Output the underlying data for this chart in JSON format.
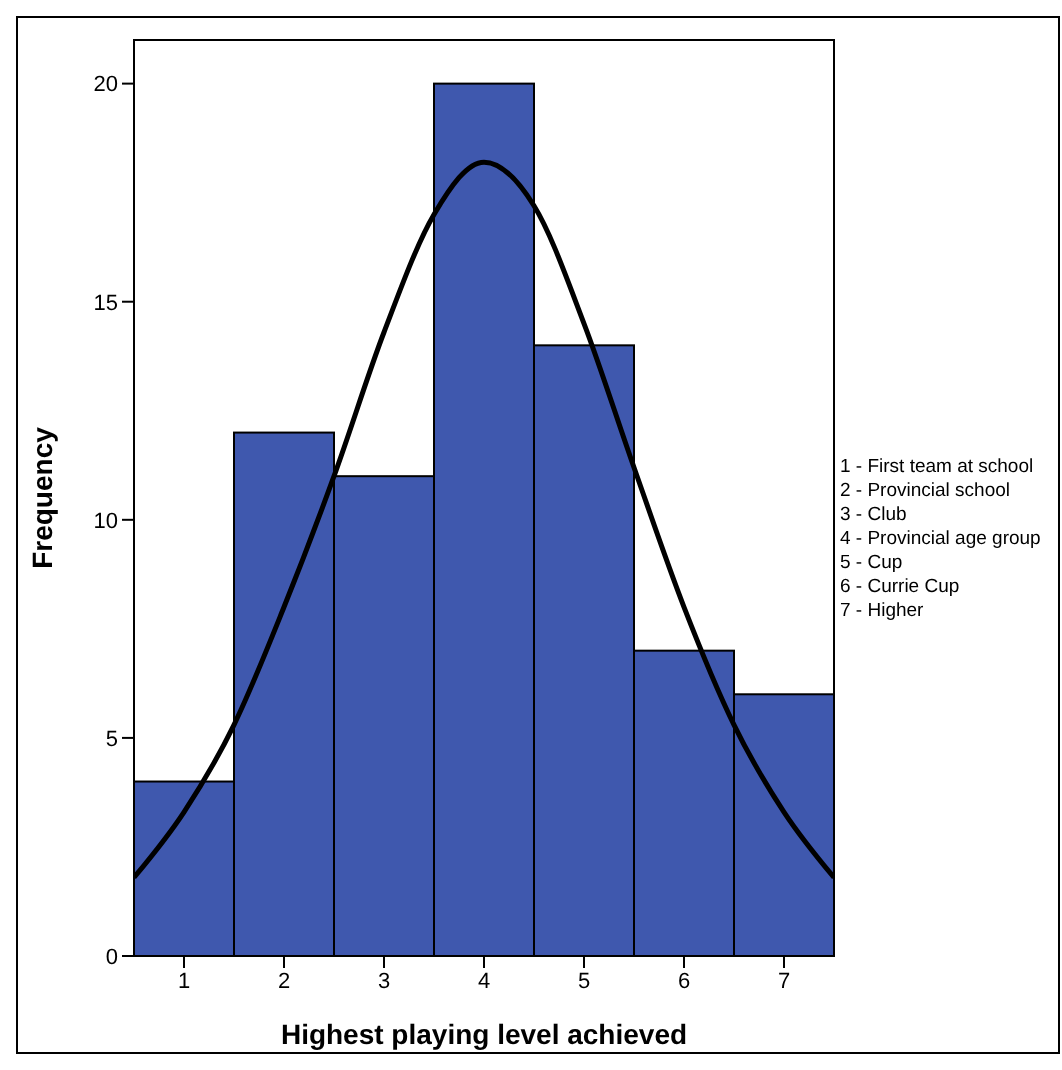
{
  "chart_data": {
    "type": "histogram",
    "xlabel": "Highest playing level achieved",
    "ylabel": "Frequency",
    "bins": [
      0.5,
      1.5,
      2.5,
      3.5,
      4.5,
      5.5,
      6.5,
      7.5
    ],
    "values": [
      4,
      12,
      11,
      20,
      14,
      7,
      6
    ],
    "color": "#3f58ae",
    "series": [
      {
        "type": "line",
        "color": "#000000",
        "x": [
          0.5,
          1,
          1.5,
          2,
          2.5,
          3,
          3.5,
          4,
          4.5,
          5,
          5.5,
          6,
          6.5,
          7,
          7.5
        ],
        "values": [
          1.8,
          3.3,
          5.3,
          8.0,
          11.0,
          14.3,
          17.0,
          18.2,
          17.2,
          14.5,
          11.2,
          8.0,
          5.3,
          3.3,
          1.8
        ]
      }
    ],
    "xlim": [
      0.5,
      7.5
    ],
    "xticks": [
      1,
      2,
      3,
      4,
      5,
      6,
      7
    ],
    "ylim": [
      0,
      21
    ],
    "yticks": [
      0,
      5,
      10,
      15,
      20
    ],
    "annotations": [
      "1 - First team at school",
      "2 - Provincial school",
      "3 - Club",
      "4 - Provincial age group",
      "5 - Cup",
      "6 - Currie Cup",
      "7 - Higher"
    ]
  }
}
